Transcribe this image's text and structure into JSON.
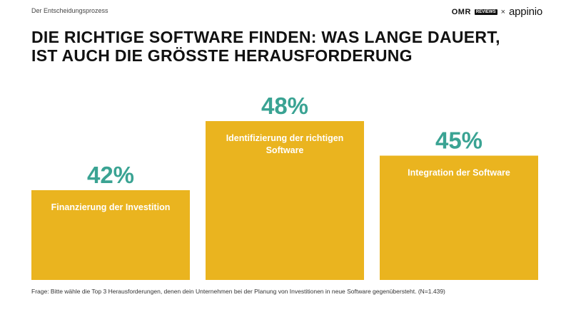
{
  "header": {
    "kicker": "Der Entscheidungsprozess",
    "title_lines": [
      "DIE RICHTIGE SOFTWARE FINDEN: WAS LANGE DAUERT,",
      "IST AUCH DIE GRÖSSTE HERAUSFORDERUNG"
    ]
  },
  "brand": {
    "omr": "OMR",
    "reviews_badge": "REVIEWS",
    "separator": "×",
    "partner": "appinio"
  },
  "colors": {
    "bar": "#eab41f",
    "value": "#3aa393",
    "bar_label": "#ffffff"
  },
  "chart_data": {
    "type": "bar",
    "categories": [
      "Finanzierung der Investition",
      "Identifizierung der richtigen Software",
      "Integration der Software"
    ],
    "category_lines": [
      [
        "Finanzierung der Investition"
      ],
      [
        "Identifizierung der richtigen",
        "Software"
      ],
      [
        "Integration der Software"
      ]
    ],
    "values": [
      42,
      48,
      45
    ],
    "value_labels": [
      "42%",
      "48%",
      "45%"
    ],
    "unit": "%",
    "title": "",
    "xlabel": "",
    "ylabel": "",
    "grid": false,
    "legend": "none"
  },
  "footer": {
    "note": "Frage: Bitte wähle die Top 3 Herausforderungen, denen dein Unternehmen bei der Planung von Investitionen in neue Software gegenübersteht. (N=1.439)"
  }
}
